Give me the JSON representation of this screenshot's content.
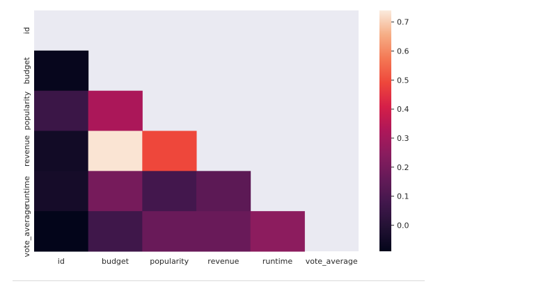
{
  "chart_data": {
    "type": "heatmap",
    "title": "",
    "xlabel": "",
    "ylabel": "",
    "x_categories": [
      "id",
      "budget",
      "popularity",
      "revenue",
      "runtime",
      "vote_average"
    ],
    "y_categories": [
      "id",
      "budget",
      "popularity",
      "revenue",
      "runtime",
      "vote_average"
    ],
    "mask": "upper-triangle-including-diagonal",
    "values": [
      [
        null,
        null,
        null,
        null,
        null,
        null
      ],
      [
        -0.08,
        null,
        null,
        null,
        null,
        null
      ],
      [
        0.06,
        0.32,
        null,
        null,
        null,
        null
      ],
      [
        -0.05,
        0.73,
        0.49,
        null,
        null,
        null
      ],
      [
        -0.04,
        0.2,
        0.08,
        0.14,
        null,
        null
      ],
      [
        -0.09,
        0.07,
        0.17,
        0.17,
        0.25,
        null
      ]
    ],
    "colorbar": {
      "label": "",
      "vmin": -0.09,
      "vmax": 0.74,
      "ticks": [
        "0.0",
        "0.1",
        "0.2",
        "0.3",
        "0.4",
        "0.5",
        "0.6",
        "0.7"
      ],
      "tick_values": [
        0.0,
        0.1,
        0.2,
        0.3,
        0.4,
        0.5,
        0.6,
        0.7
      ]
    },
    "colormap": "rocket",
    "background_color": "#eaeaf2",
    "grid": false
  }
}
